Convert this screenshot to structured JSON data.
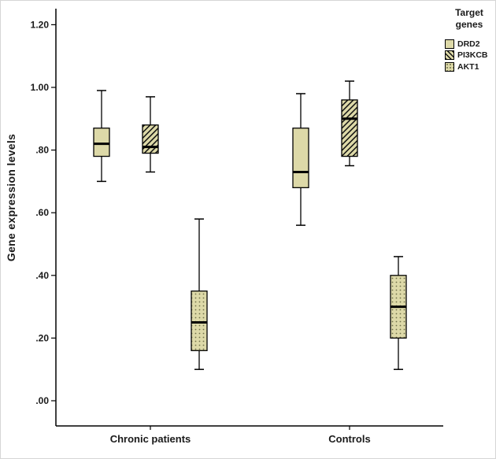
{
  "figure": {
    "background": "#ffffff"
  },
  "chart_data": {
    "type": "boxplot",
    "title": "",
    "ylabel": "Gene expression levels",
    "xlabel": "",
    "ylim": [
      0,
      1.25
    ],
    "grid": false,
    "legend_title": "Target genes",
    "legend_position": "top-right",
    "yticks": [
      {
        "value": 0.0,
        "label": ".00"
      },
      {
        "value": 0.2,
        "label": ".20"
      },
      {
        "value": 0.4,
        "label": ".40"
      },
      {
        "value": 0.6,
        "label": ".60"
      },
      {
        "value": 0.8,
        "label": ".80"
      },
      {
        "value": 1.0,
        "label": "1.00"
      },
      {
        "value": 1.2,
        "label": "1.20"
      }
    ],
    "groups": [
      "Chronic patients",
      "Controls"
    ],
    "colors": {
      "box_fill": "#ddd9a8",
      "box_stroke": "#000000",
      "median": "#000000"
    },
    "series": [
      {
        "name": "DRD2",
        "pattern": "solid",
        "stats": [
          {
            "group": "Chronic patients",
            "min": 0.7,
            "q1": 0.78,
            "median": 0.82,
            "q3": 0.87,
            "max": 0.99
          },
          {
            "group": "Controls",
            "min": 0.56,
            "q1": 0.68,
            "median": 0.73,
            "q3": 0.87,
            "max": 0.98
          }
        ]
      },
      {
        "name": "PI3KCB",
        "pattern": "hatch",
        "stats": [
          {
            "group": "Chronic patients",
            "min": 0.73,
            "q1": 0.79,
            "median": 0.81,
            "q3": 0.88,
            "max": 0.97
          },
          {
            "group": "Controls",
            "min": 0.75,
            "q1": 0.78,
            "median": 0.9,
            "q3": 0.96,
            "max": 1.02
          }
        ]
      },
      {
        "name": "AKT1",
        "pattern": "dots",
        "stats": [
          {
            "group": "Chronic patients",
            "min": 0.1,
            "q1": 0.16,
            "median": 0.25,
            "q3": 0.35,
            "max": 0.58
          },
          {
            "group": "Controls",
            "min": 0.1,
            "q1": 0.2,
            "median": 0.3,
            "q3": 0.4,
            "max": 0.46
          }
        ]
      }
    ]
  }
}
